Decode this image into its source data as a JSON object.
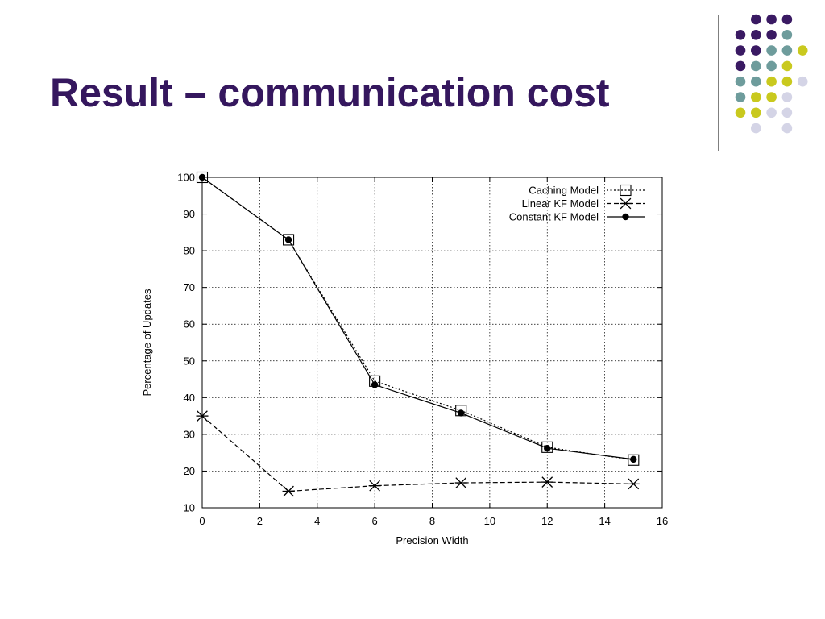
{
  "slide": {
    "title": "Result – communication cost"
  },
  "decoration": {
    "dot_colors": {
      "purple": "#3a1a63",
      "teal": "#6e9c9c",
      "yellow": "#c9c91e",
      "lavender": "#d4d4e6"
    },
    "divider_color": "#555555"
  },
  "chart_data": {
    "type": "line",
    "xlabel": "Precision Width",
    "ylabel": "Percentage of Updates",
    "xlim": [
      0,
      16
    ],
    "ylim": [
      10,
      100
    ],
    "xticks": [
      0,
      2,
      4,
      6,
      8,
      10,
      12,
      14,
      16
    ],
    "yticks": [
      10,
      20,
      30,
      40,
      50,
      60,
      70,
      80,
      90,
      100
    ],
    "grid": true,
    "legend_position": "top-right",
    "series": [
      {
        "name": "Caching Model",
        "marker": "square",
        "line": "dotted",
        "x": [
          0,
          3,
          6,
          9,
          12,
          15
        ],
        "y": [
          100,
          83,
          44.5,
          36.5,
          26.5,
          23
        ]
      },
      {
        "name": "Linear KF Model",
        "marker": "asterisk",
        "line": "dashed",
        "x": [
          0,
          3,
          6,
          9,
          12,
          15
        ],
        "y": [
          35,
          14.5,
          16,
          16.8,
          17,
          16.5
        ]
      },
      {
        "name": "Constant KF Model",
        "marker": "dot",
        "line": "solid",
        "x": [
          0,
          3,
          6,
          9,
          12,
          15
        ],
        "y": [
          100,
          83,
          43.5,
          35.8,
          26.2,
          23.2
        ]
      }
    ]
  }
}
